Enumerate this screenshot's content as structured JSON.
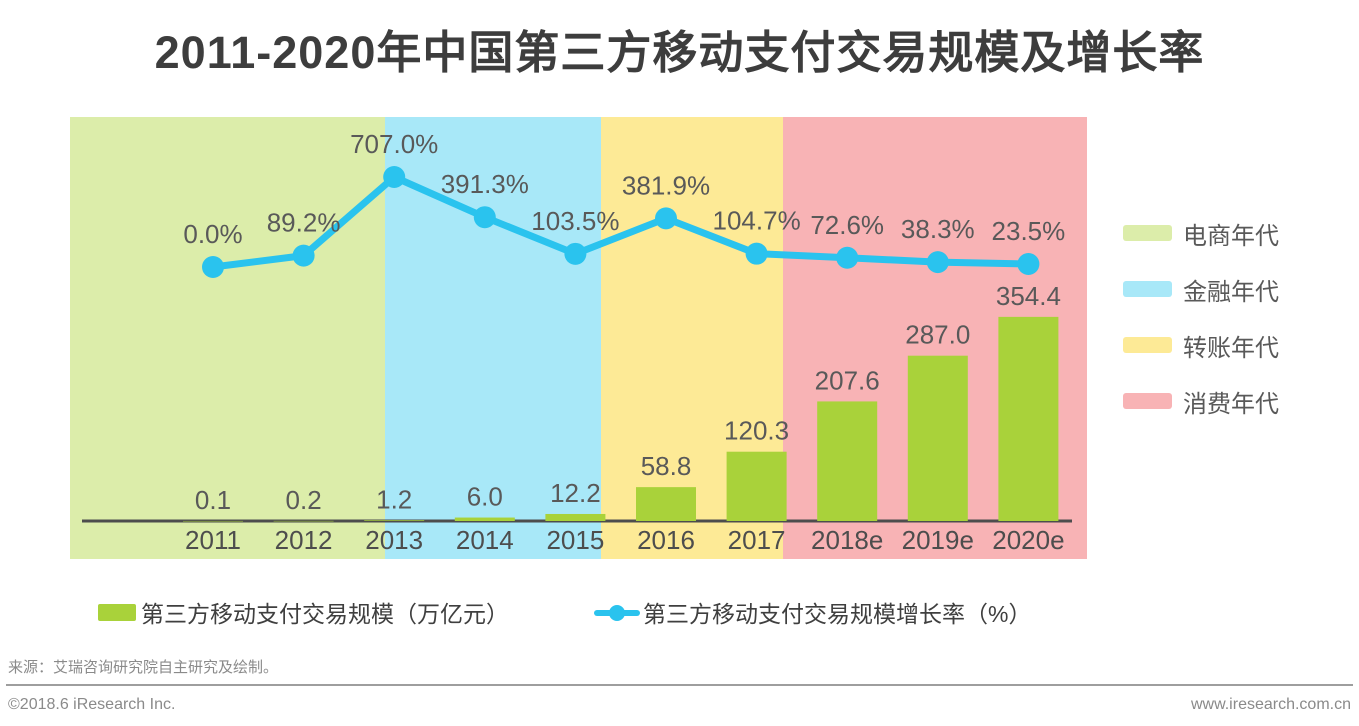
{
  "title": "2011-2020年中国第三方移动支付交易规模及增长率",
  "chart_data": {
    "type": "bar+line combo",
    "title": "2011-2020年中国第三方移动支付交易规模及增长率",
    "categories": [
      "2011",
      "2012",
      "2013",
      "2014",
      "2015",
      "2016",
      "2017",
      "2018e",
      "2019e",
      "2020e"
    ],
    "series": [
      {
        "name": "第三方移动支付交易规模（万亿元）",
        "type": "bar",
        "color": "#a9d23a",
        "values": [
          0.1,
          0.2,
          1.2,
          6.0,
          12.2,
          58.8,
          120.3,
          207.6,
          287.0,
          354.4
        ]
      },
      {
        "name": "第三方移动支付交易规模增长率（%）",
        "type": "line",
        "color": "#2ac3ee",
        "values": [
          0.0,
          89.2,
          707.0,
          391.3,
          103.5,
          381.9,
          104.7,
          72.6,
          38.3,
          23.5
        ]
      }
    ],
    "eras": [
      {
        "label": "电商年代",
        "color": "#dcedaa",
        "years": "2011-2013"
      },
      {
        "label": "金融年代",
        "color": "#a8e8f8",
        "years": "2014-2015"
      },
      {
        "label": "转账年代",
        "color": "#fdea96",
        "years": "2016-2017"
      },
      {
        "label": "消费年代",
        "color": "#f8b3b5",
        "years": "2018e-2020e"
      }
    ],
    "axis": {
      "x_ticks": [
        "2011",
        "2012",
        "2013",
        "2014",
        "2015",
        "2016",
        "2017",
        "2018e",
        "2019e",
        "2020e"
      ],
      "y_axis_shown": false,
      "grid": false
    },
    "legend_position": "era legend right, series legend bottom",
    "label_color": "#595959"
  },
  "source_note": "来源：艾瑞咨询研究院自主研究及绘制。",
  "footer": {
    "left": "©2018.6 iResearch Inc.",
    "right": "www.iresearch.com.cn"
  }
}
